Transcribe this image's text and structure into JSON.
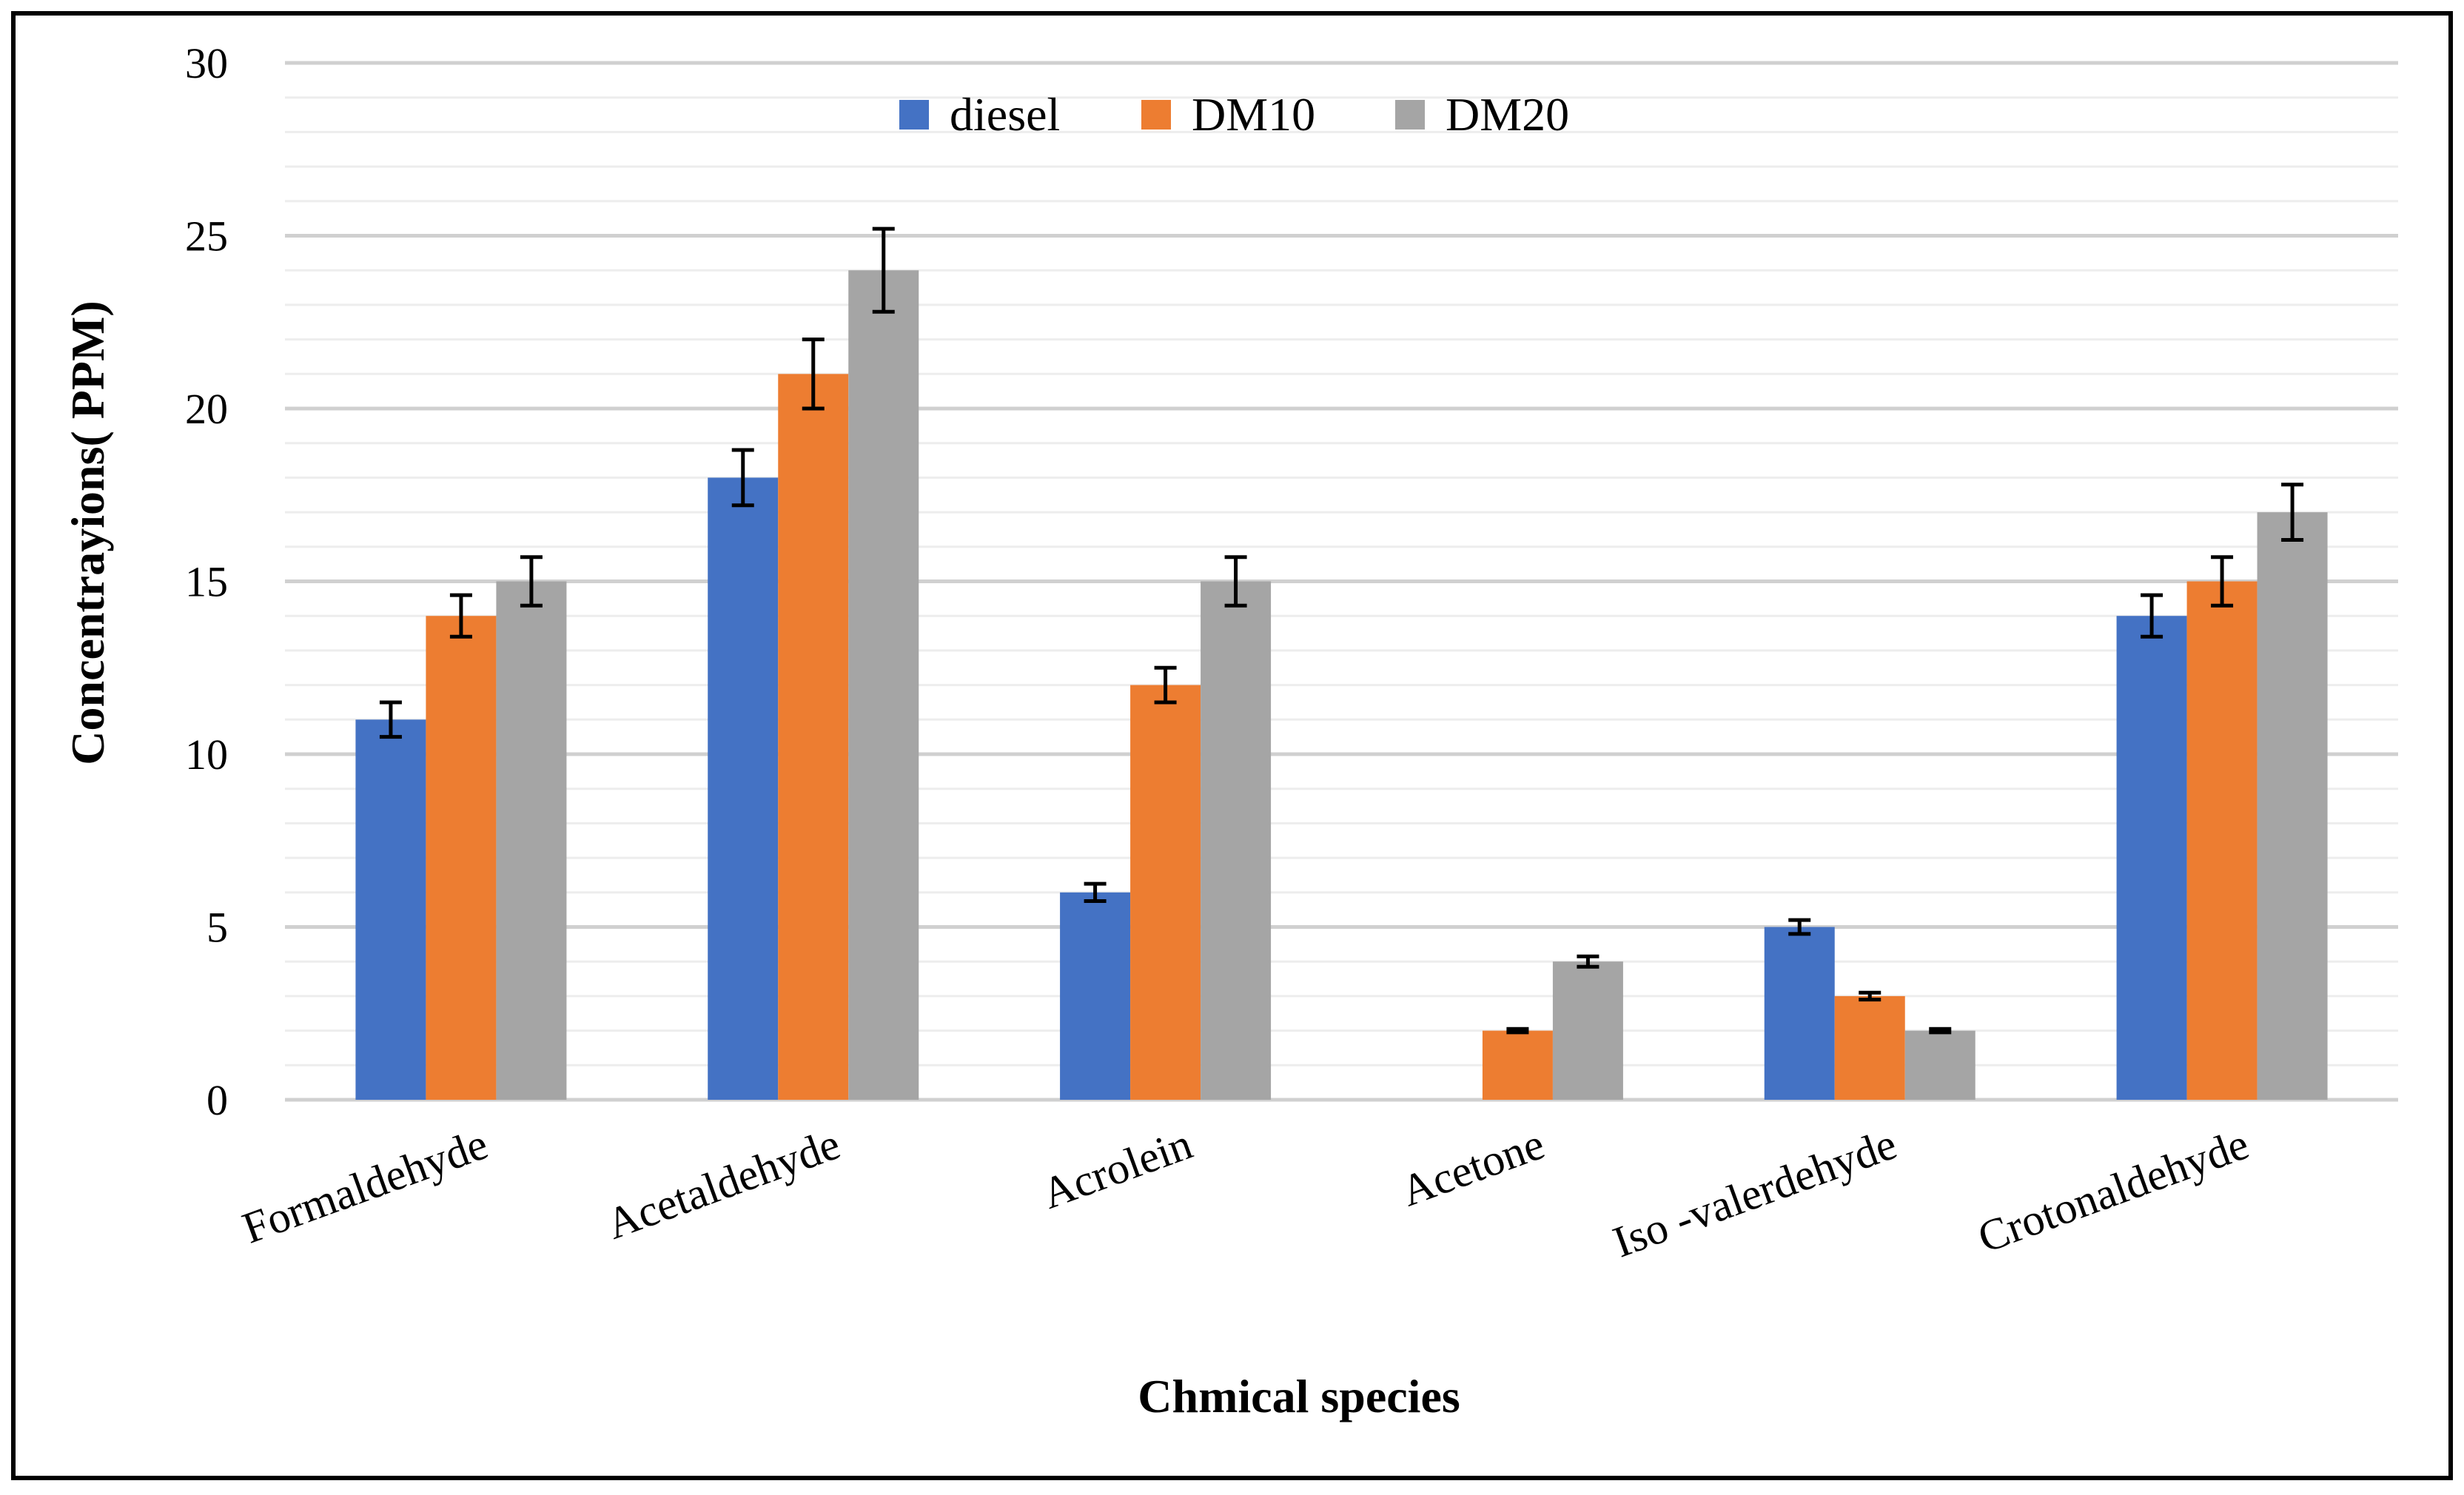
{
  "chart_data": {
    "type": "bar",
    "title": "",
    "xlabel": "Chmical species",
    "ylabel": "Concentrayions( PPM)",
    "ylim": [
      0,
      30
    ],
    "yticks": [
      0,
      5,
      10,
      15,
      20,
      25,
      30
    ],
    "minor_grid_step": 1,
    "grid": true,
    "legend_position": "top-center",
    "categories": [
      "Formaldehyde",
      "Acetaldehyde",
      "Acrolein",
      "Acetone",
      "Iso -valerdehyde",
      "Crotonaldehyde"
    ],
    "series": [
      {
        "name": "diesel",
        "color": "#4472C4",
        "values": [
          11,
          18,
          6,
          0,
          5,
          14
        ],
        "errors": [
          0.5,
          0.8,
          0.25,
          0,
          0.2,
          0.6
        ]
      },
      {
        "name": "DM10",
        "color": "#ED7D31",
        "values": [
          14,
          21,
          12,
          2,
          3,
          15
        ],
        "errors": [
          0.6,
          1.0,
          0.5,
          0.05,
          0.1,
          0.7
        ]
      },
      {
        "name": "DM20",
        "color": "#A5A5A5",
        "values": [
          15,
          24,
          15,
          4,
          2,
          17
        ],
        "errors": [
          0.7,
          1.2,
          0.7,
          0.15,
          0.05,
          0.8
        ]
      }
    ],
    "colors": {
      "major_grid": "#D0D0D0",
      "minor_grid": "#EDEDED",
      "axis_line": "#D0D0D0",
      "frame": "#000000",
      "error_bar": "#000000"
    }
  }
}
